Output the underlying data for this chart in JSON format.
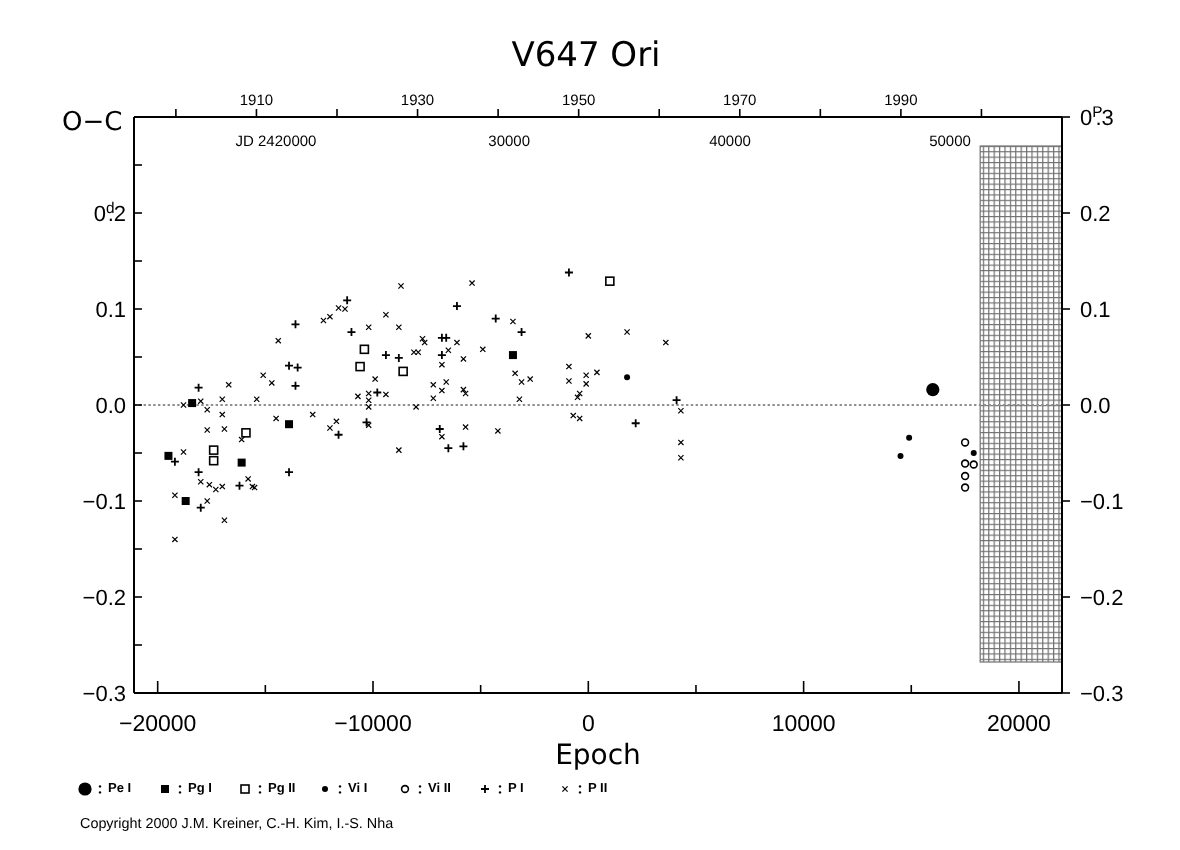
{
  "chart_data": {
    "type": "scatter",
    "title": "V647 Ori",
    "xlabel": "Epoch",
    "ylabel": "O−C",
    "annotations": [
      "Copyright 2000 J.M. Kreiner, C.-H. Kim, I.-S. Nha",
      "JD 2420000",
      "30000",
      "40000",
      "50000"
    ],
    "xlim": [
      -21100,
      22000
    ],
    "xticks": [
      -20000,
      {
        "value": -15000,
        "label": null
      },
      -10000,
      {
        "value": -5000,
        "label": null
      },
      0,
      {
        "value": 5000,
        "label": null
      },
      10000,
      {
        "value": 15000,
        "label": null
      },
      20000
    ],
    "ylim": [
      -0.3,
      0.3
    ],
    "yticks": [
      -0.3,
      {
        "value": -0.25,
        "label": null
      },
      -0.2,
      {
        "value": -0.15,
        "label": null
      },
      -0.1,
      {
        "value": -0.05,
        "label": null
      },
      {
        "value": 0,
        "label": "0.0"
      },
      {
        "value": 0.05,
        "label": null
      },
      0.1,
      {
        "value": 0.15,
        "label": null
      },
      {
        "value": 0.2,
        "label": "0$^{d}$.2"
      },
      {
        "value": 0.25,
        "label": null
      },
      {
        "value": 0.3,
        "label": null
      }
    ],
    "y2lim": [
      -0.3,
      0.3
    ],
    "y2ticks": [
      -0.3,
      -0.2,
      -0.1,
      {
        "value": 0,
        "label": "0.0"
      },
      0.1,
      0.2,
      {
        "value": 0.3,
        "label": "0$^{P}$.3"
      }
    ],
    "x2lim": [
      1894.8,
      2010
    ],
    "x2ticks": [
      {
        "value": 1900,
        "label": null
      },
      1910,
      {
        "value": 1920,
        "label": null
      },
      1930,
      {
        "value": 1940,
        "label": null
      },
      1950,
      {
        "value": 1960,
        "label": null
      },
      1970,
      {
        "value": 1980,
        "label": null
      },
      1990,
      {
        "value": 2000,
        "label": null
      }
    ],
    "ref_lines": [
      {
        "axis": "y",
        "value": 0,
        "color": "#909090",
        "line_style": "dotted"
      }
    ],
    "bands": [
      {
        "axis": "x",
        "from": 18200,
        "to": 22000,
        "color": "#707070"
      }
    ],
    "legend": "bottom",
    "series": [
      {
        "name": "Pe I",
        "color": "#000000",
        "marker": "circle",
        "x": [
          16000
        ],
        "values": [
          0.016
        ]
      },
      {
        "name": "Pg I",
        "color": "#000000",
        "marker": "square",
        "x": [
          -19500,
          -18700,
          -18400,
          -16100,
          -13900,
          -3500
        ],
        "values": [
          -0.053,
          -0.1,
          0.002,
          -0.06,
          -0.02,
          0.052
        ]
      },
      {
        "name": "Pg II",
        "color": "#000000",
        "marker": "square",
        "x": [
          -17400,
          -17400,
          -15900,
          -10400,
          -10600,
          -8600,
          1000
        ],
        "values": [
          -0.047,
          -0.058,
          -0.029,
          0.058,
          0.04,
          0.035,
          0.129
        ]
      },
      {
        "name": "Vi I",
        "color": "#000000",
        "marker": "circle",
        "x": [
          1800,
          14900,
          14500,
          17900
        ],
        "values": [
          0.029,
          -0.034,
          -0.053,
          -0.05
        ]
      },
      {
        "name": "Vi II",
        "color": "#000000",
        "marker": "circle",
        "x": [
          17500,
          17500,
          17900,
          17500,
          17500
        ],
        "values": [
          -0.039,
          -0.061,
          -0.062,
          -0.074,
          -0.086
        ]
      },
      {
        "name": "P I",
        "color": "#000000",
        "marker": "cross",
        "x": [
          -900,
          -11200,
          -6100,
          -4300,
          -3100,
          -13600,
          -11000,
          -6800,
          -6600,
          -9400,
          -8800,
          -6800,
          -13900,
          -13500,
          -18100,
          -13600,
          -9800,
          -11600,
          -10300,
          -5800,
          -6500,
          2200,
          -13900,
          -18100,
          -18000,
          -19200,
          -16200,
          -6900,
          4100
        ],
        "values": [
          0.138,
          0.109,
          0.103,
          0.09,
          0.076,
          0.084,
          0.076,
          0.07,
          0.07,
          0.052,
          0.049,
          0.052,
          0.041,
          0.039,
          0.018,
          0.02,
          0.013,
          -0.031,
          -0.018,
          -0.043,
          -0.045,
          -0.019,
          -0.07,
          -0.07,
          -0.107,
          -0.059,
          -0.084,
          -0.025,
          0.005
        ]
      },
      {
        "name": "P II",
        "color": "#000000",
        "marker": "cross",
        "x": [
          -8700,
          -5400,
          -11600,
          -11300,
          -12300,
          -12000,
          -9400,
          -3500,
          -10200,
          -8800,
          -7700,
          -7600,
          -14400,
          -6100,
          -6500,
          -4900,
          -8100,
          -7900,
          -5800,
          0,
          1800,
          -15100,
          -14700,
          -9900,
          -6800,
          -3400,
          -3100,
          -2700,
          -3200,
          -900,
          400,
          -100,
          -900,
          -16700,
          -15400,
          -17000,
          -9400,
          -10200,
          -10700,
          -10200,
          -7200,
          -6600,
          -6800,
          -5800,
          -5700,
          -7200,
          -400,
          -500,
          -18800,
          -18000,
          -17700,
          -17700,
          -17000,
          -8000,
          -10200,
          -14500,
          -12800,
          -11700,
          -12000,
          -10200,
          -6800,
          -5700,
          -4200,
          -700,
          -400,
          -16900,
          -16100,
          -18800,
          -8800,
          -18000,
          -17600,
          -17300,
          -17000,
          -15800,
          -15600,
          -15500,
          -19200,
          -17700,
          -16900,
          -19200,
          3600,
          -100,
          4300,
          4300,
          4300
        ],
        "values": [
          0.124,
          0.127,
          0.101,
          0.1,
          0.088,
          0.092,
          0.094,
          0.087,
          0.081,
          0.081,
          0.069,
          0.065,
          0.067,
          0.065,
          0.057,
          0.058,
          0.055,
          0.055,
          0.048,
          0.072,
          0.076,
          0.031,
          0.023,
          0.027,
          0.042,
          0.033,
          0.024,
          0.027,
          0.006,
          0.04,
          0.034,
          0.022,
          0.025,
          0.021,
          0.006,
          0.006,
          0.011,
          0.012,
          0.009,
          0.005,
          0.021,
          0.024,
          0.015,
          0.016,
          0.012,
          0.007,
          0.012,
          0.008,
          0,
          0.004,
          -0.005,
          -0.026,
          -0.01,
          -0.002,
          -0.002,
          -0.014,
          -0.01,
          -0.017,
          -0.024,
          -0.021,
          -0.033,
          -0.023,
          -0.027,
          -0.011,
          -0.014,
          -0.025,
          -0.036,
          -0.049,
          -0.047,
          -0.08,
          -0.083,
          -0.088,
          -0.085,
          -0.077,
          -0.085,
          -0.086,
          -0.094,
          -0.1,
          -0.12,
          -0.14,
          0.065,
          0.031,
          -0.006,
          -0.039,
          -0.055
        ]
      }
    ]
  }
}
